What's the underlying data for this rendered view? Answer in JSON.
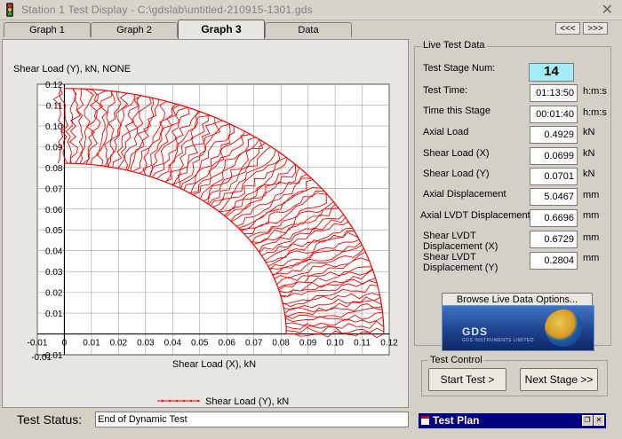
{
  "window": {
    "title": "Station 1 Test Display - C:\\gdslab\\untitled-210915-1301.gds",
    "close_glyph": "✕"
  },
  "tabs": [
    {
      "label": "Graph 1",
      "active": false
    },
    {
      "label": "Graph 2",
      "active": false
    },
    {
      "label": "Graph 3",
      "active": true
    },
    {
      "label": "Data",
      "active": false
    }
  ],
  "nav": {
    "prev": "<<<",
    "next": ">>>"
  },
  "chart_data": {
    "type": "scatter",
    "title": "",
    "ylabel": "Shear Load (Y), kN, NONE",
    "xlabel": "Shear Load (X), kN",
    "xlim": [
      -0.01,
      0.12
    ],
    "ylim": [
      -0.01,
      0.12
    ],
    "x_ticks": [
      "-0.01",
      "0",
      "0.01",
      "0.02",
      "0.03",
      "0.04",
      "0.05",
      "0.06",
      "0.07",
      "0.08",
      "0.09",
      "0.10",
      "0.11",
      "0.12"
    ],
    "y_ticks": [
      "-0.01",
      "0",
      "0.01",
      "0.02",
      "0.03",
      "0.04",
      "0.05",
      "0.06",
      "0.07",
      "0.08",
      "0.09",
      "0.10",
      "0.11",
      "0.12"
    ],
    "grid": true,
    "series": [
      {
        "name": "Shear Load (Y), kN",
        "color": "#ff0000",
        "shape": "quarter-annulus",
        "inner_radius": 0.082,
        "outer_radius": 0.118,
        "angle_range_deg": [
          0,
          90
        ]
      }
    ],
    "legend_placement": "bottom-center"
  },
  "live_test_data": {
    "title": "Live Test Data",
    "rows": [
      {
        "label": "Test Stage Num:",
        "value": "14",
        "unit": ""
      },
      {
        "label": "Test Time:",
        "value": "01:13:50",
        "unit": "h:m:s"
      },
      {
        "label": "Time this Stage",
        "value": "00:01:40",
        "unit": "h:m:s"
      },
      {
        "label": "Axial Load",
        "value": "0.4929",
        "unit": "kN"
      },
      {
        "label": "Shear Load (X)",
        "value": "0.0699",
        "unit": "kN"
      },
      {
        "label": "Shear Load (Y)",
        "value": "0.0701",
        "unit": "kN"
      },
      {
        "label": "Axial Displacement",
        "value": "5.0467",
        "unit": "mm"
      },
      {
        "label": "Axial LVDT Displacement",
        "value": "0.6696",
        "unit": "mm"
      },
      {
        "label_line1": "Shear LVDT",
        "label_line2": "Displacement (X)",
        "value": "0.6729",
        "unit": "mm"
      },
      {
        "label_line1": "Shear LVDT",
        "label_line2": "Displacement (Y)",
        "value": "0.2804",
        "unit": "mm"
      }
    ],
    "browse_button": "Browse Live Data Options..."
  },
  "logo": {
    "text": "GDS",
    "subtext": "GDS INSTRUMENTS LIMITED"
  },
  "test_control": {
    "title": "Test Control",
    "start_button": "Start Test >",
    "next_button": "Next Stage >>"
  },
  "status": {
    "label": "Test Status:",
    "value": "End of Dynamic Test"
  },
  "test_plan": {
    "title": "Test Plan"
  }
}
